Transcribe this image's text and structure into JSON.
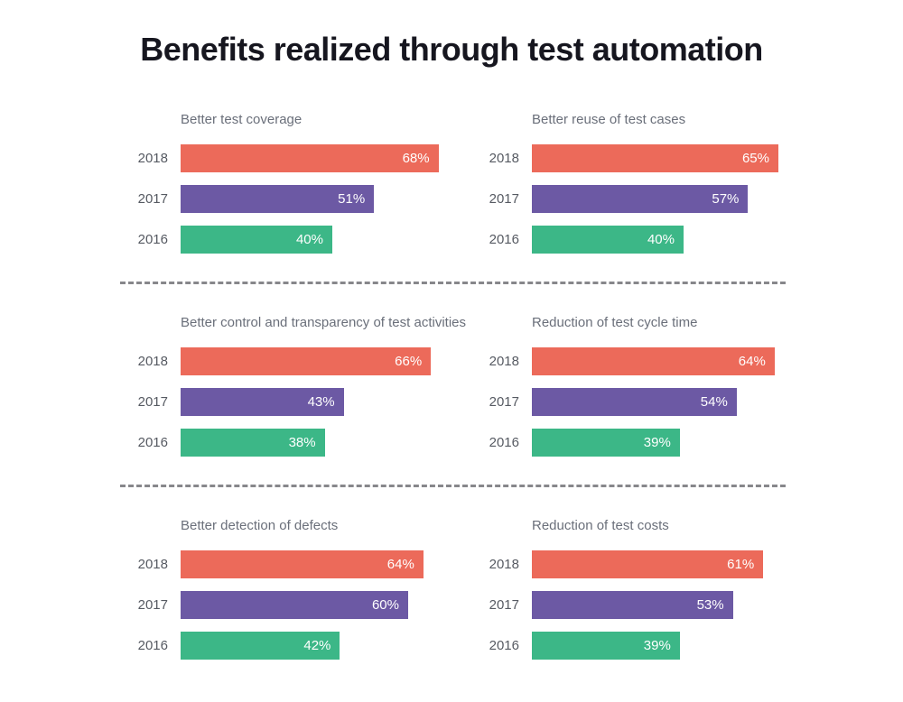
{
  "page_title": "Benefits realized through test automation",
  "palette": {
    "2018": "#EC6A5A",
    "2017": "#6C59A4",
    "2016": "#3CB787"
  },
  "divider_color": "#87878B",
  "chart_data": [
    {
      "type": "bar",
      "orientation": "horizontal",
      "title": "Better test coverage",
      "categories": [
        "2018",
        "2017",
        "2016"
      ],
      "values": [
        68,
        51,
        40
      ],
      "value_labels": [
        "68%",
        "51%",
        "40%"
      ],
      "xlim": [
        0,
        100
      ],
      "grid": false,
      "legend": "none"
    },
    {
      "type": "bar",
      "orientation": "horizontal",
      "title": "Better reuse of test cases",
      "categories": [
        "2018",
        "2017",
        "2016"
      ],
      "values": [
        65,
        57,
        40
      ],
      "value_labels": [
        "65%",
        "57%",
        "40%"
      ],
      "xlim": [
        0,
        100
      ],
      "grid": false,
      "legend": "none"
    },
    {
      "type": "bar",
      "orientation": "horizontal",
      "title": "Better control and transparency of test activities",
      "categories": [
        "2018",
        "2017",
        "2016"
      ],
      "values": [
        66,
        43,
        38
      ],
      "value_labels": [
        "66%",
        "43%",
        "38%"
      ],
      "xlim": [
        0,
        100
      ],
      "grid": false,
      "legend": "none"
    },
    {
      "type": "bar",
      "orientation": "horizontal",
      "title": "Reduction of test cycle time",
      "categories": [
        "2018",
        "2017",
        "2016"
      ],
      "values": [
        64,
        54,
        39
      ],
      "value_labels": [
        "64%",
        "54%",
        "39%"
      ],
      "xlim": [
        0,
        100
      ],
      "grid": false,
      "legend": "none"
    },
    {
      "type": "bar",
      "orientation": "horizontal",
      "title": "Better detection of defects",
      "categories": [
        "2018",
        "2017",
        "2016"
      ],
      "values": [
        64,
        60,
        42
      ],
      "value_labels": [
        "64%",
        "60%",
        "42%"
      ],
      "xlim": [
        0,
        100
      ],
      "grid": false,
      "legend": "none"
    },
    {
      "type": "bar",
      "orientation": "horizontal",
      "title": "Reduction of test costs",
      "categories": [
        "2018",
        "2017",
        "2016"
      ],
      "values": [
        61,
        53,
        39
      ],
      "value_labels": [
        "61%",
        "53%",
        "39%"
      ],
      "xlim": [
        0,
        100
      ],
      "grid": false,
      "legend": "none"
    }
  ]
}
